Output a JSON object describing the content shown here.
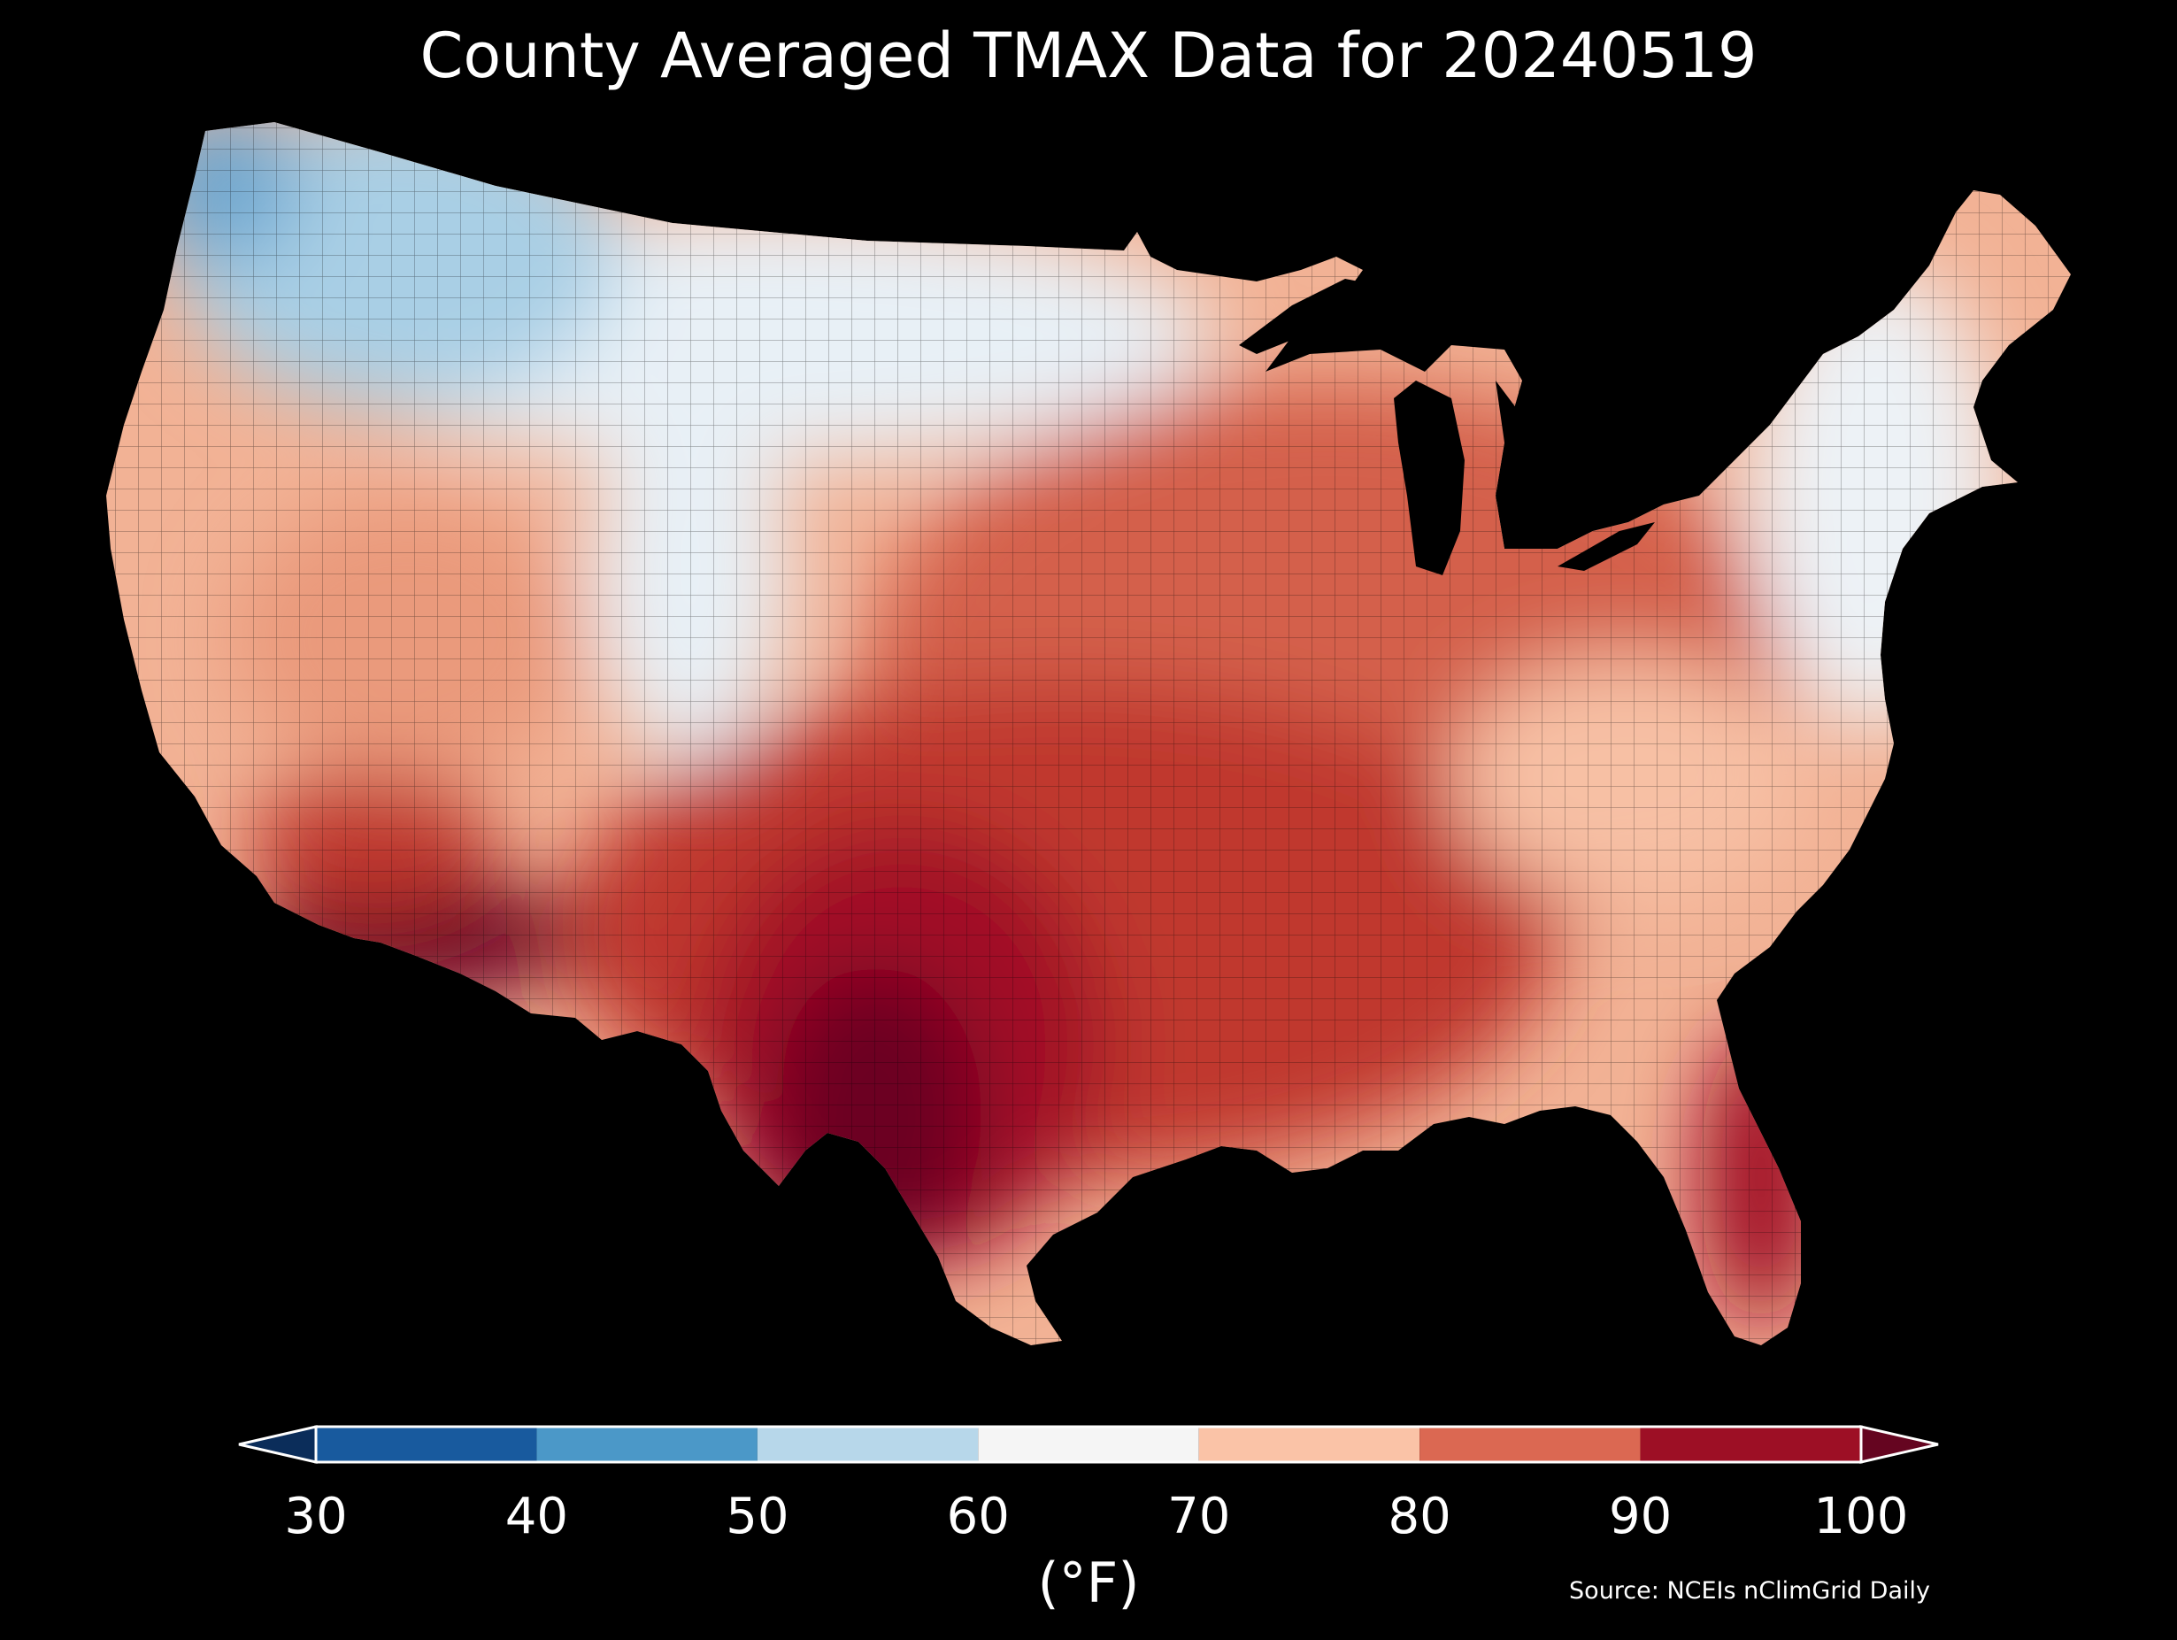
{
  "title": "County Averaged TMAX Data for 20240519",
  "colorbar": {
    "unit": "(°F)",
    "ticks": [
      "30",
      "40",
      "50",
      "60",
      "70",
      "80",
      "90",
      "100"
    ],
    "bins": [
      {
        "from": 30,
        "to": 40,
        "color": "#185a9e"
      },
      {
        "from": 40,
        "to": 50,
        "color": "#4b98c8"
      },
      {
        "from": 50,
        "to": 60,
        "color": "#b7d7ea"
      },
      {
        "from": 60,
        "to": 70,
        "color": "#f5f5f5"
      },
      {
        "from": 70,
        "to": 80,
        "color": "#fac3a7"
      },
      {
        "from": 80,
        "to": 90,
        "color": "#db6852"
      },
      {
        "from": 90,
        "to": 100,
        "color": "#9d0f25"
      }
    ],
    "under_color": "#0b2d5a",
    "over_color": "#650520"
  },
  "source": "Source: NCEIs nClimGrid Daily",
  "map": {
    "region": "Contiguous United States",
    "units": "counties",
    "colors": {
      "cool_northwest": "#a9cfe5",
      "mild_north": "#e8f0f6",
      "warm_west": "#f2b295",
      "warm_midwest": "#d4604c",
      "hot_south": "#b3182e",
      "hottest_texas": "#6c0221",
      "cool_northeast": "#edf2f6",
      "mild_southeast": "#f7c0a4"
    }
  }
}
